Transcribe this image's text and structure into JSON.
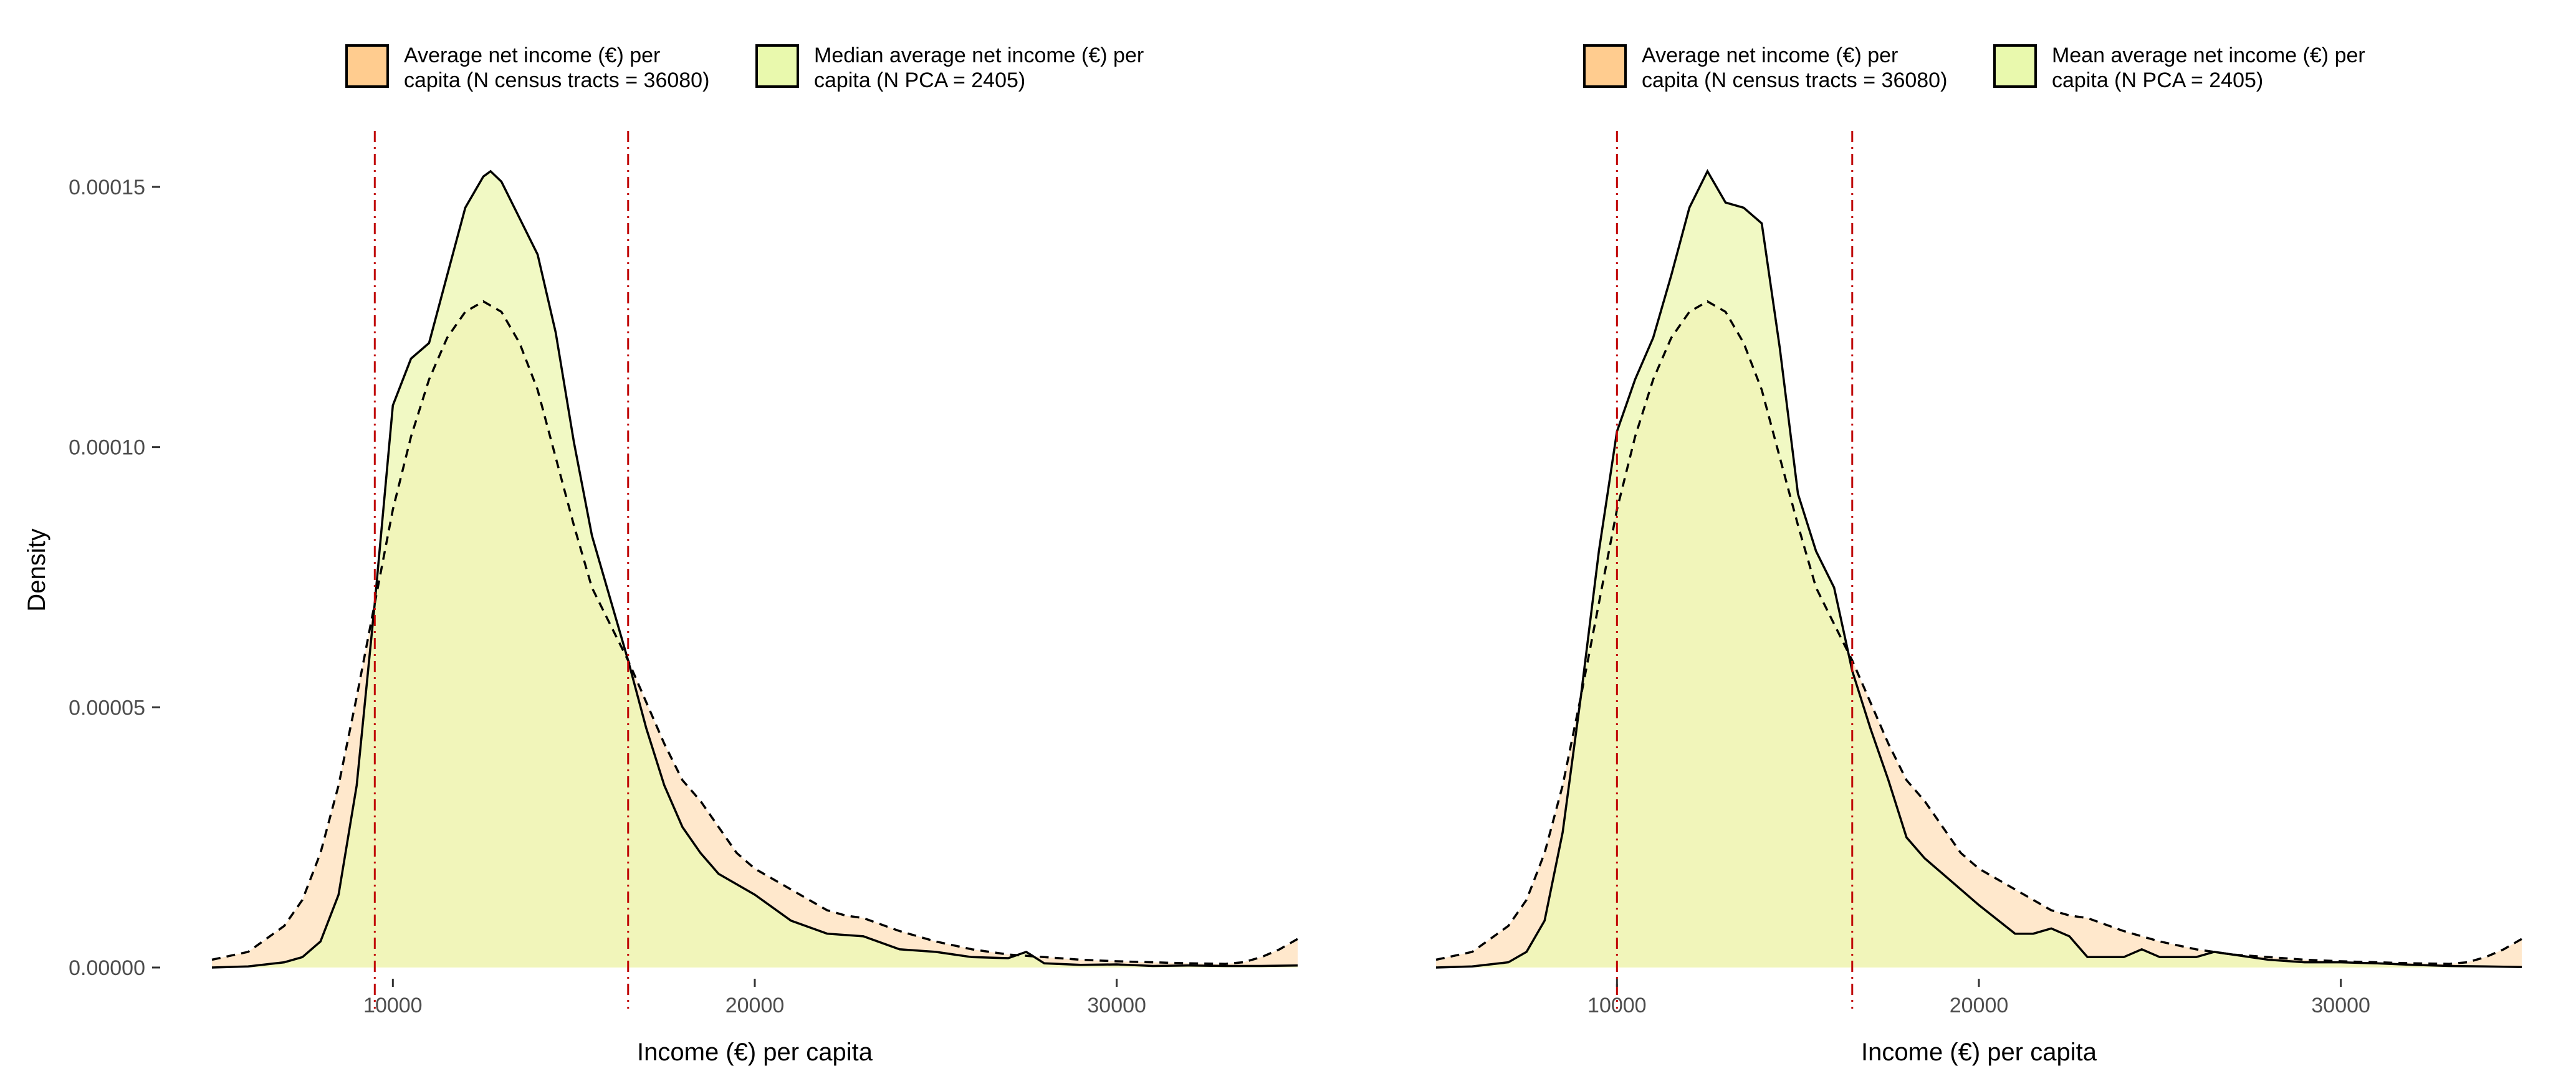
{
  "colors": {
    "census_fill": "#ffcc8f",
    "census_area_fill": "#ffe8cc",
    "pca_fill": "#edf7b5",
    "pca_key_fill": "#e9f9ad",
    "outline": "#000000",
    "cutoff_line": "#c00000",
    "tick_text": "#4d4d4d"
  },
  "chart_data": [
    {
      "type": "area",
      "xlabel": "Income (€) per capita",
      "ylabel": "Density",
      "xlim": [
        5000,
        35000
      ],
      "ylim": [
        0,
        0.00016
      ],
      "x_ticks": [
        10000,
        20000,
        30000
      ],
      "x_tick_labels": [
        "10000",
        "20000",
        "30000"
      ],
      "y_ticks": [
        0,
        5e-05,
        0.0001,
        0.00015
      ],
      "y_tick_labels": [
        "0.00000",
        "0.00005",
        "0.00010",
        "0.00015"
      ],
      "grid": false,
      "legend_position": "top",
      "vlines": [
        9500,
        16500
      ],
      "series": [
        {
          "name": "Average net income (€) per capita (N census tracts = 36080)",
          "legend_lines": [
            "Average net income (€) per",
            "capita (N census tracts = 36080)"
          ],
          "line": "dashed",
          "x": [
            5000,
            6000,
            7000,
            7500,
            8000,
            8500,
            9000,
            9500,
            10000,
            10500,
            11000,
            11500,
            12000,
            12500,
            13000,
            13500,
            14000,
            14500,
            15000,
            15500,
            16000,
            16500,
            17000,
            17500,
            18000,
            18500,
            19000,
            19500,
            20000,
            21000,
            22000,
            22500,
            23000,
            24000,
            25000,
            26000,
            27000,
            28000,
            29000,
            30000,
            31000,
            32000,
            33000,
            33500,
            34000,
            34500,
            35000
          ],
          "y": [
            1.5e-06,
            3e-06,
            8e-06,
            1.3e-05,
            2.2e-05,
            3.5e-05,
            5.2e-05,
            7e-05,
            8.8e-05,
            0.000102,
            0.000113,
            0.000121,
            0.000126,
            0.000128,
            0.000126,
            0.00012,
            0.000111,
            9.8e-05,
            8.5e-05,
            7.3e-05,
            6.6e-05,
            5.9e-05,
            5.1e-05,
            4.3e-05,
            3.6e-05,
            3.2e-05,
            2.7e-05,
            2.2e-05,
            1.9e-05,
            1.5e-05,
            1.1e-05,
            1e-05,
            9.5e-06,
            7e-06,
            5e-06,
            3.5e-06,
            2.5e-06,
            2e-06,
            1.5e-06,
            1.2e-06,
            1e-06,
            8e-07,
            7e-07,
            1e-06,
            2e-06,
            3.5e-06,
            5.5e-06
          ]
        },
        {
          "name": "Median average net income (€) per capita (N PCA = 2405)",
          "legend_lines": [
            "Median average net income (€) per",
            "capita (N PCA = 2405)"
          ],
          "line": "solid",
          "x": [
            5000,
            6000,
            7000,
            7500,
            8000,
            8500,
            9000,
            9500,
            10000,
            10500,
            11000,
            11500,
            12000,
            12500,
            12700,
            13000,
            13500,
            14000,
            14500,
            15000,
            15500,
            16000,
            16500,
            17000,
            17500,
            18000,
            18500,
            19000,
            20000,
            21000,
            22000,
            23000,
            24000,
            25000,
            26000,
            27000,
            27500,
            28000,
            29000,
            30000,
            31000,
            32000,
            33000,
            34000,
            35000
          ],
          "y": [
            0,
            2e-07,
            1e-06,
            2e-06,
            5e-06,
            1.4e-05,
            3.5e-05,
            7e-05,
            0.000108,
            0.000117,
            0.00012,
            0.000133,
            0.000146,
            0.000152,
            0.000153,
            0.000151,
            0.000144,
            0.000137,
            0.000122,
            0.000101,
            8.3e-05,
            7.1e-05,
            5.9e-05,
            4.6e-05,
            3.5e-05,
            2.7e-05,
            2.2e-05,
            1.8e-05,
            1.4e-05,
            9e-06,
            6.5e-06,
            6e-06,
            3.5e-06,
            3e-06,
            2e-06,
            1.8e-06,
            3e-06,
            8e-07,
            5e-07,
            6e-07,
            3e-07,
            4e-07,
            3e-07,
            3e-07,
            4e-07
          ]
        }
      ]
    },
    {
      "type": "area",
      "xlabel": "Income (€) per capita",
      "ylabel": "",
      "xlim": [
        5000,
        35000
      ],
      "ylim": [
        0,
        0.00016
      ],
      "x_ticks": [
        10000,
        20000,
        30000
      ],
      "x_tick_labels": [
        "10000",
        "20000",
        "30000"
      ],
      "grid": false,
      "legend_position": "top",
      "vlines": [
        10000,
        16500
      ],
      "series": [
        {
          "name": "Average net income (€) per capita (N census tracts = 36080)",
          "legend_lines": [
            "Average net income (€) per",
            "capita (N census tracts = 36080)"
          ],
          "line": "dashed",
          "x": [
            5000,
            6000,
            7000,
            7500,
            8000,
            8500,
            9000,
            9500,
            10000,
            10500,
            11000,
            11500,
            12000,
            12500,
            13000,
            13500,
            14000,
            14500,
            15000,
            15500,
            16000,
            16500,
            17000,
            17500,
            18000,
            18500,
            19000,
            19500,
            20000,
            21000,
            22000,
            22500,
            23000,
            24000,
            25000,
            26000,
            27000,
            28000,
            29000,
            30000,
            31000,
            32000,
            33000,
            33500,
            34000,
            34500,
            35000
          ],
          "y": [
            1.5e-06,
            3e-06,
            8e-06,
            1.3e-05,
            2.2e-05,
            3.5e-05,
            5.2e-05,
            7e-05,
            8.8e-05,
            0.000102,
            0.000113,
            0.000121,
            0.000126,
            0.000128,
            0.000126,
            0.00012,
            0.000111,
            9.8e-05,
            8.5e-05,
            7.3e-05,
            6.6e-05,
            5.9e-05,
            5.1e-05,
            4.3e-05,
            3.6e-05,
            3.2e-05,
            2.7e-05,
            2.2e-05,
            1.9e-05,
            1.5e-05,
            1.1e-05,
            1e-05,
            9.5e-06,
            7e-06,
            5e-06,
            3.5e-06,
            2.5e-06,
            2e-06,
            1.5e-06,
            1.2e-06,
            1e-06,
            8e-07,
            7e-07,
            1e-06,
            2e-06,
            3.5e-06,
            5.5e-06
          ]
        },
        {
          "name": "Mean average net income (€) per capita (N PCA = 2405)",
          "legend_lines": [
            "Mean average net income (€) per",
            "capita (N PCA = 2405)"
          ],
          "line": "solid",
          "x": [
            5000,
            6000,
            7000,
            7500,
            8000,
            8500,
            9000,
            9500,
            10000,
            10500,
            11000,
            11500,
            12000,
            12500,
            13000,
            13500,
            14000,
            14500,
            15000,
            15500,
            16000,
            16500,
            17000,
            17500,
            18000,
            18500,
            19000,
            20000,
            21000,
            21500,
            22000,
            22500,
            23000,
            24000,
            24500,
            25000,
            26000,
            26500,
            27000,
            28000,
            29000,
            30000,
            31000,
            32000,
            33000,
            34000,
            35000
          ],
          "y": [
            0,
            2e-07,
            1e-06,
            3e-06,
            9e-06,
            2.6e-05,
            5.2e-05,
            8e-05,
            0.000103,
            0.000113,
            0.000121,
            0.000133,
            0.000146,
            0.000153,
            0.000147,
            0.000146,
            0.000143,
            0.000119,
            9.1e-05,
            8e-05,
            7.3e-05,
            5.7e-05,
            4.6e-05,
            3.6e-05,
            2.5e-05,
            2.1e-05,
            1.8e-05,
            1.2e-05,
            6.5e-06,
            6.5e-06,
            7.5e-06,
            6e-06,
            2e-06,
            2e-06,
            3.5e-06,
            2e-06,
            2e-06,
            3e-06,
            2.5e-06,
            1.5e-06,
            1e-06,
            1e-06,
            8e-07,
            5e-07,
            3e-07,
            2e-07,
            1e-07
          ]
        }
      ]
    }
  ]
}
